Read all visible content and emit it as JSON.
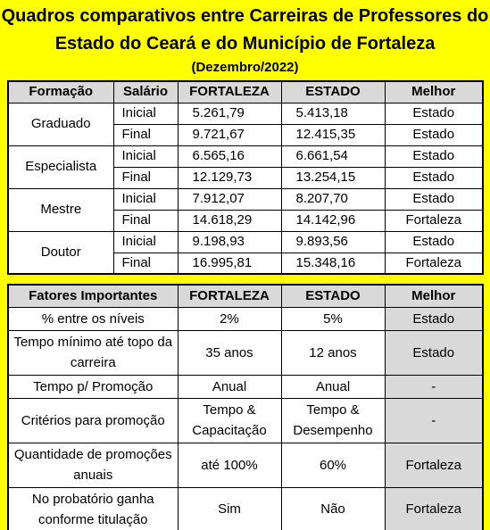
{
  "title": {
    "line1": "Quadros comparativos entre Carreiras de Professores do",
    "line2": "Estado do Ceará e do Município de Fortaleza",
    "line3": "(Dezembro/2022)"
  },
  "salary_table": {
    "headers": [
      "Formação",
      "Salário",
      "FORTALEZA",
      "ESTADO",
      "Melhor"
    ],
    "groups": [
      {
        "formacao": "Graduado",
        "rows": [
          {
            "salario": "Inicial",
            "fortaleza": "5.261,79",
            "estado": "5.413,18",
            "melhor": "Estado"
          },
          {
            "salario": "Final",
            "fortaleza": "9.721,67",
            "estado": "12.415,35",
            "melhor": "Estado"
          }
        ]
      },
      {
        "formacao": "Especialista",
        "rows": [
          {
            "salario": "Inicial",
            "fortaleza": "6.565,16",
            "estado": "6.661,54",
            "melhor": "Estado"
          },
          {
            "salario": "Final",
            "fortaleza": "12.129,73",
            "estado": "13.254,15",
            "melhor": "Estado"
          }
        ]
      },
      {
        "formacao": "Mestre",
        "rows": [
          {
            "salario": "Inicial",
            "fortaleza": "7.912,07",
            "estado": "8.207,70",
            "melhor": "Estado"
          },
          {
            "salario": "Final",
            "fortaleza": "14.618,29",
            "estado": "14.142,96",
            "melhor": "Fortaleza"
          }
        ]
      },
      {
        "formacao": "Doutor",
        "rows": [
          {
            "salario": "Inicial",
            "fortaleza": "9.198,93",
            "estado": "9.893,56",
            "melhor": "Estado"
          },
          {
            "salario": "Final",
            "fortaleza": "16.995,81",
            "estado": "15.348,16",
            "melhor": "Fortaleza"
          }
        ]
      }
    ]
  },
  "factors_table": {
    "headers": [
      "Fatores Importantes",
      "FORTALEZA",
      "ESTADO",
      "Melhor"
    ],
    "rows": [
      {
        "fator": "% entre os níveis",
        "fortaleza": "2%",
        "estado": "5%",
        "melhor": "Estado"
      },
      {
        "fator": "Tempo mínimo até topo da carreira",
        "fortaleza": "35 anos",
        "estado": "12 anos",
        "melhor": "Estado"
      },
      {
        "fator": "Tempo p/ Promoção",
        "fortaleza": "Anual",
        "estado": "Anual",
        "melhor": "-"
      },
      {
        "fator": "Critérios para promoção",
        "fortaleza": "Tempo & Capacitação",
        "estado": "Tempo & Desempenho",
        "melhor": "-"
      },
      {
        "fator": "Quantidade de promoções anuais",
        "fortaleza": "até 100%",
        "estado": "60%",
        "melhor": "Fortaleza"
      },
      {
        "fator": "No probatório ganha conforme titulação",
        "fortaleza": "Sim",
        "estado": "Não",
        "melhor": "Fortaleza"
      }
    ]
  },
  "colors": {
    "background": "#ffff00",
    "header_fill": "#d9d9d9",
    "cell_fill": "#ffffff"
  }
}
